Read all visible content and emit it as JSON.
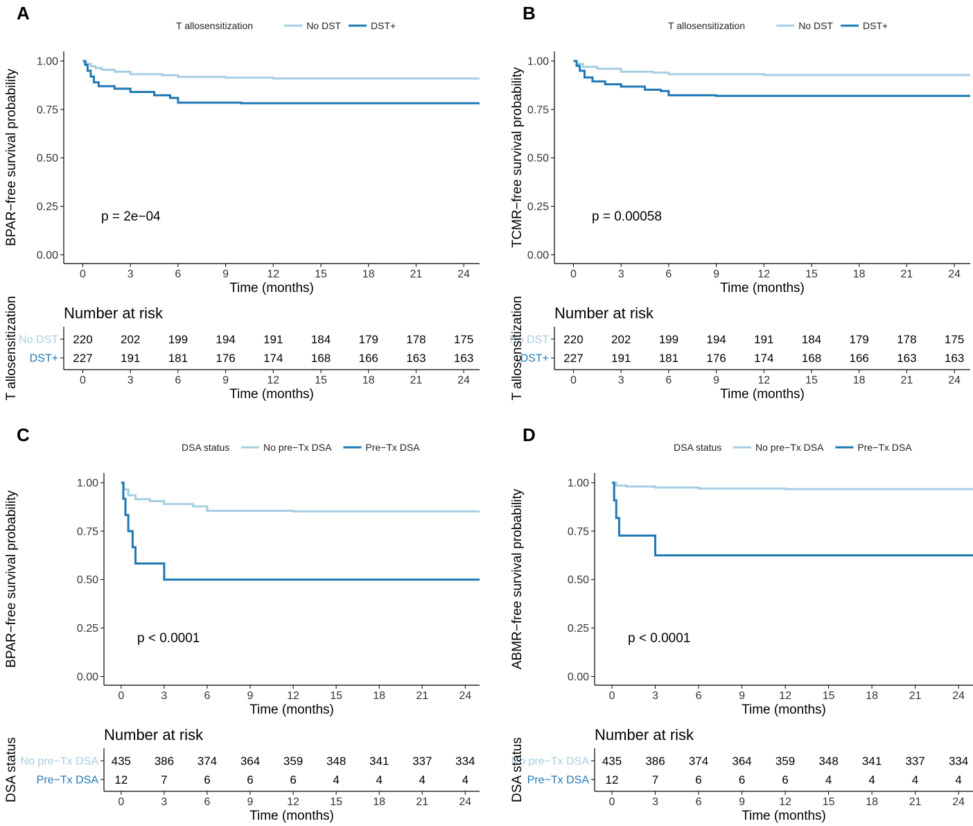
{
  "colors": {
    "light": "#a6cee3",
    "dark": "#1f78b4"
  },
  "number_at_risk_title": "Number at risk",
  "chart_data": [
    {
      "type": "line",
      "panel": "A",
      "legend_title": "T allosensitization",
      "groups": [
        "No DST",
        "DST+"
      ],
      "ylabel": "BPAR−free survival probability",
      "xlabel": "Time (months)",
      "risk_ylabel": "T allosensitization",
      "pvalue": "p = 2e−04",
      "yticks": [
        "0.00",
        "0.25",
        "0.50",
        "0.75",
        "1.00"
      ],
      "xticks": [
        "0",
        "3",
        "6",
        "9",
        "12",
        "15",
        "18",
        "21",
        "24"
      ],
      "xlim": [
        -1.2,
        25
      ],
      "ylim": [
        -0.045,
        1.05
      ],
      "series": [
        {
          "name": "No DST",
          "points": [
            [
              0,
              1
            ],
            [
              0.2,
              0.986
            ],
            [
              0.5,
              0.973
            ],
            [
              0.8,
              0.964
            ],
            [
              1.2,
              0.955
            ],
            [
              2,
              0.945
            ],
            [
              3,
              0.932
            ],
            [
              5,
              0.927
            ],
            [
              6,
              0.918
            ],
            [
              9,
              0.914
            ],
            [
              12,
              0.91
            ],
            [
              24,
              0.91
            ],
            [
              25,
              0.91
            ]
          ]
        },
        {
          "name": "DST+",
          "points": [
            [
              0,
              1
            ],
            [
              0.15,
              0.98
            ],
            [
              0.3,
              0.95
            ],
            [
              0.5,
              0.92
            ],
            [
              0.7,
              0.89
            ],
            [
              1,
              0.87
            ],
            [
              2,
              0.857
            ],
            [
              3,
              0.84
            ],
            [
              4.5,
              0.823
            ],
            [
              5.5,
              0.81
            ],
            [
              6,
              0.785
            ],
            [
              9,
              0.785
            ],
            [
              10,
              0.782
            ],
            [
              24,
              0.782
            ],
            [
              25,
              0.782
            ]
          ]
        }
      ],
      "risk_table": {
        "No DST": [
          220,
          202,
          199,
          194,
          191,
          184,
          179,
          178,
          175
        ],
        "DST+": [
          227,
          191,
          181,
          176,
          174,
          168,
          166,
          163,
          163
        ]
      }
    },
    {
      "type": "line",
      "panel": "B",
      "legend_title": "T allosensitization",
      "groups": [
        "No DST",
        "DST+"
      ],
      "ylabel": "TCMR−free survival probability",
      "xlabel": "Time (months)",
      "risk_ylabel": "T allosensitization",
      "pvalue": "p = 0.00058",
      "yticks": [
        "0.00",
        "0.25",
        "0.50",
        "0.75",
        "1.00"
      ],
      "xticks": [
        "0",
        "3",
        "6",
        "9",
        "12",
        "15",
        "18",
        "21",
        "24"
      ],
      "xlim": [
        -1.2,
        25
      ],
      "ylim": [
        -0.045,
        1.05
      ],
      "series": [
        {
          "name": "No DST",
          "points": [
            [
              0,
              1
            ],
            [
              0.2,
              0.985
            ],
            [
              0.6,
              0.97
            ],
            [
              1.5,
              0.96
            ],
            [
              3,
              0.945
            ],
            [
              5,
              0.94
            ],
            [
              6,
              0.932
            ],
            [
              9,
              0.932
            ],
            [
              12,
              0.928
            ],
            [
              24,
              0.928
            ],
            [
              25,
              0.928
            ]
          ]
        },
        {
          "name": "DST+",
          "points": [
            [
              0,
              1
            ],
            [
              0.2,
              0.975
            ],
            [
              0.4,
              0.95
            ],
            [
              0.7,
              0.915
            ],
            [
              1.2,
              0.895
            ],
            [
              2,
              0.88
            ],
            [
              3,
              0.868
            ],
            [
              4.5,
              0.852
            ],
            [
              5.5,
              0.845
            ],
            [
              6,
              0.823
            ],
            [
              9,
              0.82
            ],
            [
              12,
              0.82
            ],
            [
              24,
              0.82
            ],
            [
              25,
              0.82
            ]
          ]
        }
      ],
      "risk_table": {
        "No DST": [
          220,
          202,
          199,
          194,
          191,
          184,
          179,
          178,
          175
        ],
        "DST+": [
          227,
          191,
          181,
          176,
          174,
          168,
          166,
          163,
          163
        ]
      }
    },
    {
      "type": "line",
      "panel": "C",
      "legend_title": "DSA status",
      "groups": [
        "No pre−Tx DSA",
        "Pre−Tx DSA"
      ],
      "ylabel": "BPAR−free survival probability",
      "xlabel": "Time (months)",
      "risk_ylabel": "DSA status",
      "pvalue": "p < 0.0001",
      "yticks": [
        "0.00",
        "0.25",
        "0.50",
        "0.75",
        "1.00"
      ],
      "xticks": [
        "0",
        "3",
        "6",
        "9",
        "12",
        "15",
        "18",
        "21",
        "24"
      ],
      "xlim": [
        -1.2,
        25
      ],
      "ylim": [
        -0.045,
        1.05
      ],
      "series": [
        {
          "name": "No pre−Tx DSA",
          "points": [
            [
              0,
              1
            ],
            [
              0.2,
              0.965
            ],
            [
              0.5,
              0.935
            ],
            [
              1,
              0.915
            ],
            [
              2,
              0.905
            ],
            [
              3,
              0.89
            ],
            [
              5,
              0.878
            ],
            [
              6,
              0.855
            ],
            [
              9,
              0.855
            ],
            [
              12,
              0.852
            ],
            [
              24,
              0.852
            ],
            [
              25,
              0.852
            ]
          ]
        },
        {
          "name": "Pre−Tx DSA",
          "points": [
            [
              0,
              1
            ],
            [
              0.15,
              0.917
            ],
            [
              0.3,
              0.833
            ],
            [
              0.5,
              0.75
            ],
            [
              0.8,
              0.667
            ],
            [
              1,
              0.583
            ],
            [
              3,
              0.5
            ],
            [
              25,
              0.5
            ]
          ]
        }
      ],
      "risk_table": {
        "No pre−Tx DSA": [
          435,
          386,
          374,
          364,
          359,
          348,
          341,
          337,
          334
        ],
        "Pre−Tx DSA": [
          12,
          7,
          6,
          6,
          6,
          4,
          4,
          4,
          4
        ]
      }
    },
    {
      "type": "line",
      "panel": "D",
      "legend_title": "DSA status",
      "groups": [
        "No pre−Tx DSA",
        "Pre−Tx DSA"
      ],
      "ylabel": "ABMR−free survival probability",
      "xlabel": "Time (months)",
      "risk_ylabel": "DSA status",
      "pvalue": "p < 0.0001",
      "yticks": [
        "0.00",
        "0.25",
        "0.50",
        "0.75",
        "1.00"
      ],
      "xticks": [
        "0",
        "3",
        "6",
        "9",
        "12",
        "15",
        "18",
        "21",
        "24"
      ],
      "xlim": [
        -1.2,
        25
      ],
      "ylim": [
        -0.045,
        1.05
      ],
      "series": [
        {
          "name": "No pre−Tx DSA",
          "points": [
            [
              0,
              1
            ],
            [
              0.3,
              0.985
            ],
            [
              1,
              0.98
            ],
            [
              3,
              0.975
            ],
            [
              6,
              0.97
            ],
            [
              9,
              0.97
            ],
            [
              12,
              0.967
            ],
            [
              24,
              0.967
            ],
            [
              25,
              0.967
            ]
          ]
        },
        {
          "name": "Pre−Tx DSA",
          "points": [
            [
              0,
              1
            ],
            [
              0.15,
              0.909
            ],
            [
              0.3,
              0.818
            ],
            [
              0.5,
              0.727
            ],
            [
              3,
              0.625
            ],
            [
              25,
              0.625
            ]
          ]
        }
      ],
      "risk_table": {
        "No pre−Tx DSA": [
          435,
          386,
          374,
          364,
          359,
          348,
          341,
          337,
          334
        ],
        "Pre−Tx DSA": [
          12,
          7,
          6,
          6,
          6,
          4,
          4,
          4,
          4
        ]
      }
    }
  ]
}
